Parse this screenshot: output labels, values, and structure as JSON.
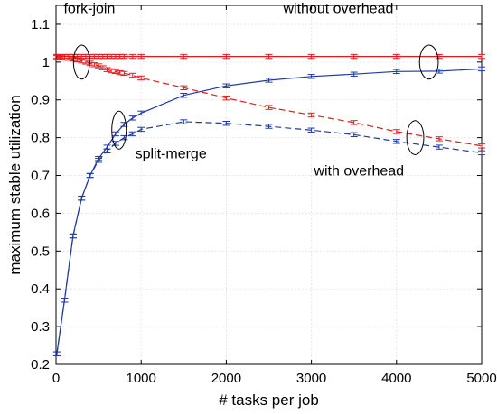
{
  "chart_data": {
    "type": "line",
    "title": "",
    "xlabel": "# tasks per job",
    "ylabel": "maximum stable utilization",
    "xlim": [
      0,
      5000
    ],
    "ylim": [
      0.2,
      1.15
    ],
    "xticks": [
      0,
      1000,
      2000,
      3000,
      4000,
      5000
    ],
    "yticks": [
      0.2,
      0.3,
      0.4,
      0.5,
      0.6,
      0.7,
      0.8,
      0.9,
      1,
      1.1
    ],
    "grid": true,
    "legend": "none",
    "series": [
      {
        "color": "#e41a1c",
        "linestyle": "solid",
        "x": [
          10,
          50,
          100,
          150,
          200,
          250,
          300,
          350,
          400,
          450,
          500,
          550,
          600,
          650,
          700,
          750,
          800,
          900,
          1000,
          1500,
          2000,
          2500,
          3000,
          3500,
          4000,
          4500,
          5000
        ],
        "y": [
          1.015,
          1.015,
          1.015,
          1.015,
          1.015,
          1.015,
          1.015,
          1.015,
          1.015,
          1.015,
          1.015,
          1.015,
          1.015,
          1.015,
          1.015,
          1.015,
          1.015,
          1.015,
          1.015,
          1.015,
          1.015,
          1.015,
          1.015,
          1.015,
          1.015,
          1.015,
          1.015
        ]
      },
      {
        "color": "#e41a1c",
        "linestyle": "dashed",
        "x": [
          10,
          50,
          100,
          150,
          200,
          250,
          300,
          350,
          400,
          450,
          500,
          550,
          600,
          650,
          700,
          750,
          800,
          900,
          1000,
          1500,
          2000,
          2500,
          3000,
          3500,
          4000,
          4500,
          5000
        ],
        "y": [
          1.012,
          1.012,
          1.011,
          1.01,
          1.008,
          1.006,
          1.003,
          1.0,
          0.997,
          0.993,
          0.99,
          0.985,
          0.98,
          0.977,
          0.975,
          0.972,
          0.97,
          0.965,
          0.958,
          0.932,
          0.905,
          0.88,
          0.86,
          0.84,
          0.816,
          0.797,
          0.778
        ]
      },
      {
        "color": "#1f3aa8",
        "linestyle": "solid",
        "x": [
          10,
          100,
          200,
          300,
          400,
          500,
          600,
          700,
          800,
          900,
          1000,
          1500,
          2000,
          2500,
          3000,
          3500,
          4000,
          4500,
          5000
        ],
        "y": [
          0.228,
          0.37,
          0.54,
          0.64,
          0.7,
          0.745,
          0.775,
          0.81,
          0.835,
          0.852,
          0.865,
          0.912,
          0.937,
          0.952,
          0.962,
          0.968,
          0.975,
          0.976,
          0.982
        ]
      },
      {
        "color": "#1f3aa8",
        "linestyle": "dashed",
        "x": [
          10,
          100,
          200,
          300,
          400,
          500,
          600,
          700,
          800,
          900,
          1000,
          1500,
          2000,
          2500,
          3000,
          3500,
          4000,
          4500,
          5000
        ],
        "y": [
          0.228,
          0.37,
          0.54,
          0.64,
          0.7,
          0.74,
          0.765,
          0.785,
          0.8,
          0.81,
          0.822,
          0.842,
          0.838,
          0.83,
          0.82,
          0.808,
          0.79,
          0.775,
          0.76
        ]
      }
    ],
    "annotations": [
      {
        "text": "fork-join",
        "x": 90,
        "y": 1.13,
        "ellipse": {
          "cx": 300,
          "cy": 1.0,
          "rx": 95,
          "ry": 0.045
        }
      },
      {
        "text": "without overhead",
        "x": 2670,
        "y": 1.13,
        "ellipse": {
          "cx": 4380,
          "cy": 1.0,
          "rx": 110,
          "ry": 0.045
        }
      },
      {
        "text": "split-merge",
        "x": 930,
        "y": 0.745,
        "ellipse": {
          "cx": 740,
          "cy": 0.82,
          "rx": 85,
          "ry": 0.05
        }
      },
      {
        "text": "with overhead",
        "x": 3030,
        "y": 0.7,
        "ellipse": {
          "cx": 4220,
          "cy": 0.8,
          "rx": 100,
          "ry": 0.045
        }
      }
    ]
  }
}
